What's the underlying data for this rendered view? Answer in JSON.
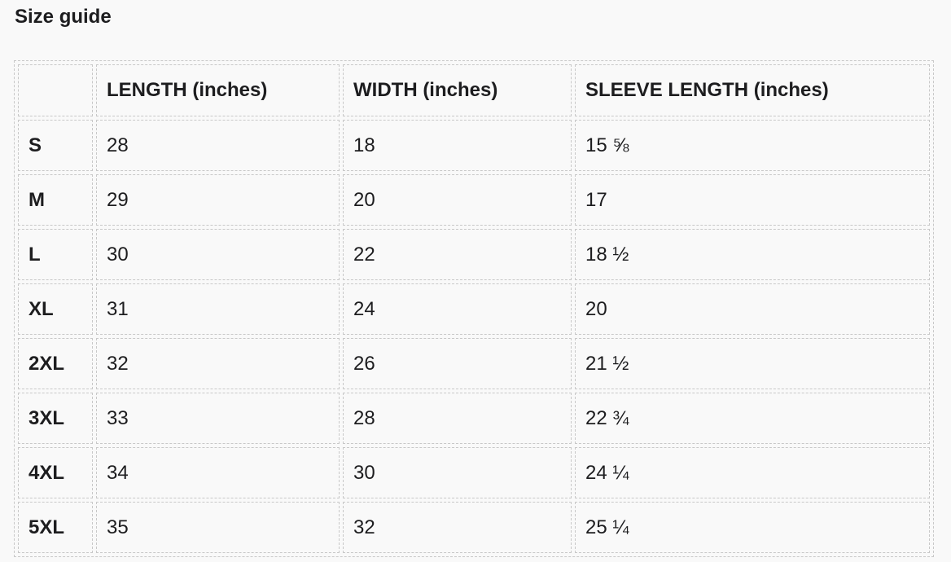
{
  "title": "Size guide",
  "headers": [
    "",
    "LENGTH (inches)",
    "WIDTH (inches)",
    "SLEEVE LENGTH (inches)"
  ],
  "rows": [
    [
      "S",
      "28",
      "18",
      "15 ⅝"
    ],
    [
      "M",
      "29",
      "20",
      "17"
    ],
    [
      "L",
      "30",
      "22",
      "18 ½"
    ],
    [
      "XL",
      "31",
      "24",
      "20"
    ],
    [
      "2XL",
      "32",
      "26",
      "21 ½"
    ],
    [
      "3XL",
      "33",
      "28",
      "22 ¾"
    ],
    [
      "4XL",
      "34",
      "30",
      "24 ¼"
    ],
    [
      "5XL",
      "35",
      "32",
      "25 ¼"
    ]
  ]
}
